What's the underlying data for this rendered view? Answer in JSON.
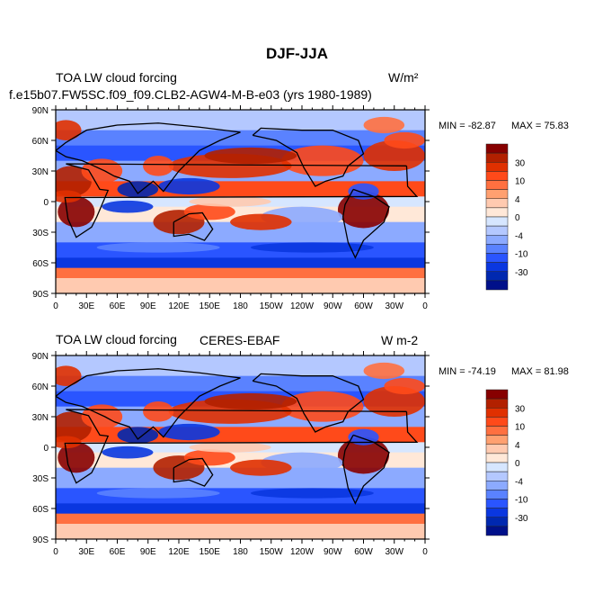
{
  "main_title": "DJF-JJA",
  "chart_data": [
    {
      "type": "heatmap",
      "subtype": "global map contour",
      "left_title": "f.e15b07.FW5SC.f09_f09.CLB2-AGW4-M-B-e03 (yrs 1980-1989)",
      "center_title": "TOA LW cloud forcing",
      "units": "W/m²",
      "min_label": "MIN = -82.87",
      "max_label": "MAX =  75.83",
      "min": -82.87,
      "max": 75.83,
      "xticks": [
        "0",
        "30E",
        "60E",
        "90E",
        "120E",
        "150E",
        "180",
        "150W",
        "120W",
        "90W",
        "60W",
        "30W",
        "0"
      ],
      "yticks": [
        "90N",
        "60N",
        "30N",
        "0",
        "30S",
        "60S",
        "90S"
      ],
      "colorbar_labels": [
        "30",
        "10",
        "4",
        "0",
        "-4",
        "-10",
        "-30"
      ],
      "levels": [
        -40,
        -30,
        -20,
        -10,
        -6,
        -4,
        -2,
        0,
        2,
        4,
        6,
        10,
        20,
        30,
        40
      ]
    },
    {
      "type": "heatmap",
      "subtype": "global map contour",
      "left_title": "TOA LW cloud forcing",
      "center_title": "CERES-EBAF",
      "units": "W m-2",
      "min_label": "MIN = -74.19",
      "max_label": "MAX =  81.98",
      "min": -74.19,
      "max": 81.98,
      "xticks": [
        "0",
        "30E",
        "60E",
        "90E",
        "120E",
        "150E",
        "180",
        "150W",
        "120W",
        "90W",
        "60W",
        "30W",
        "0"
      ],
      "yticks": [
        "90N",
        "60N",
        "30N",
        "0",
        "30S",
        "60S",
        "90S"
      ],
      "colorbar_labels": [
        "30",
        "10",
        "4",
        "0",
        "-4",
        "-10",
        "-30"
      ],
      "levels": [
        -40,
        -30,
        -20,
        -10,
        -6,
        -4,
        -2,
        0,
        2,
        4,
        6,
        10,
        20,
        30,
        40
      ]
    }
  ],
  "colors": [
    "#00108a",
    "#0028b0",
    "#0a37e0",
    "#2a55ff",
    "#5a82ff",
    "#8caaff",
    "#b4c8ff",
    "#d6e6ff",
    "#ffe8d8",
    "#ffcab0",
    "#ffa070",
    "#ff7040",
    "#ff4a1a",
    "#e03000",
    "#b22000",
    "#870000"
  ]
}
